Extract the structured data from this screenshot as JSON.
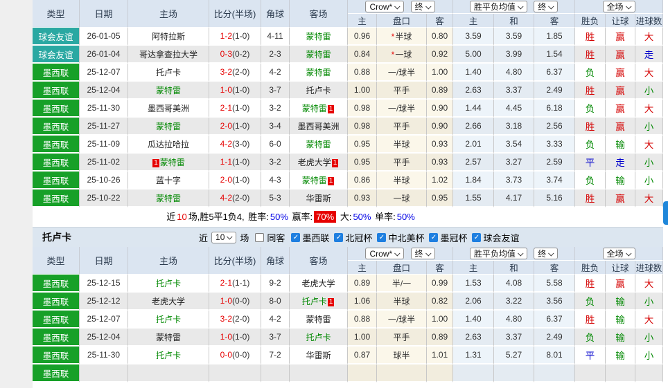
{
  "colors": {
    "league_friendly_bg": "#2aa8a2",
    "league_mex_bg": "#17a028",
    "header_bg": "#dbe5f1",
    "section_bar_bg": "#dce6f0",
    "win_red": "#d40000",
    "lose_green": "#008800",
    "draw_blue": "#0000cc",
    "badge_red": "#e60000",
    "rate_blue": "#0000e6",
    "scroll_thumb_blue": "#1f87da"
  },
  "icons": {
    "check": "✓",
    "select_arrow": "chevron-down"
  },
  "cols": {
    "type": "类型",
    "date": "日期",
    "home": "主场",
    "score": "比分(半场)",
    "corner": "角球",
    "away": "客场",
    "odds_home": "主",
    "handicap": "盘口",
    "odds_away": "客",
    "mean_home": "主",
    "mean_draw": "和",
    "mean_away": "客",
    "result_wdl": "胜负",
    "result_handicap": "让球",
    "result_goals": "进球数"
  },
  "selects": {
    "company": "Crow*",
    "state1": "终",
    "mean": "胜平负均值",
    "state2": "终",
    "scope": "全场"
  },
  "type_colors": {
    "球会友谊": "teal",
    "墨西联": "green"
  },
  "table1": {
    "rows": [
      {
        "type": "球会友谊",
        "date": "26-01-05",
        "home": "阿特拉斯",
        "home_green": false,
        "home_badge": "",
        "home_badge_side": "right",
        "score": "1-2",
        "half": "(1-0)",
        "corner": "4-11",
        "away": "蒙特雷",
        "away_green": true,
        "away_badge": "",
        "o1": "0.96",
        "star": true,
        "hand": "半球",
        "o2": "0.80",
        "m1": "3.59",
        "m2": "3.59",
        "m3": "1.85",
        "r1": "胜",
        "r1c": "red",
        "r2": "赢",
        "r2c": "red",
        "r3": "大",
        "r3c": "red"
      },
      {
        "type": "球会友谊",
        "date": "26-01-04",
        "home": "哥达拿查拉大学",
        "home_green": false,
        "home_badge": "",
        "home_badge_side": "right",
        "score": "0-3",
        "half": "(0-2)",
        "corner": "2-3",
        "away": "蒙特雷",
        "away_green": true,
        "away_badge": "",
        "o1": "0.84",
        "star": true,
        "hand": "一球",
        "o2": "0.92",
        "m1": "5.00",
        "m2": "3.99",
        "m3": "1.54",
        "r1": "胜",
        "r1c": "red",
        "r2": "赢",
        "r2c": "red",
        "r3": "走",
        "r3c": "blue"
      },
      {
        "type": "墨西联",
        "date": "25-12-07",
        "home": "托卢卡",
        "home_green": false,
        "home_badge": "",
        "home_badge_side": "right",
        "score": "3-2",
        "half": "(2-0)",
        "corner": "4-2",
        "away": "蒙特雷",
        "away_green": true,
        "away_badge": "",
        "o1": "0.88",
        "star": false,
        "hand": "一/球半",
        "o2": "1.00",
        "m1": "1.40",
        "m2": "4.80",
        "m3": "6.37",
        "r1": "负",
        "r1c": "green",
        "r2": "赢",
        "r2c": "red",
        "r3": "大",
        "r3c": "red"
      },
      {
        "type": "墨西联",
        "date": "25-12-04",
        "home": "蒙特雷",
        "home_green": true,
        "home_badge": "",
        "home_badge_side": "right",
        "score": "1-0",
        "half": "(1-0)",
        "corner": "3-7",
        "away": "托卢卡",
        "away_green": false,
        "away_badge": "",
        "o1": "1.00",
        "star": false,
        "hand": "平手",
        "o2": "0.89",
        "m1": "2.63",
        "m2": "3.37",
        "m3": "2.49",
        "r1": "胜",
        "r1c": "red",
        "r2": "赢",
        "r2c": "red",
        "r3": "小",
        "r3c": "green"
      },
      {
        "type": "墨西联",
        "date": "25-11-30",
        "home": "墨西哥美洲",
        "home_green": false,
        "home_badge": "",
        "home_badge_side": "right",
        "score": "2-1",
        "half": "(1-0)",
        "corner": "3-2",
        "away": "蒙特雷",
        "away_green": true,
        "away_badge": "1",
        "o1": "0.98",
        "star": false,
        "hand": "一/球半",
        "o2": "0.90",
        "m1": "1.44",
        "m2": "4.45",
        "m3": "6.18",
        "r1": "负",
        "r1c": "green",
        "r2": "赢",
        "r2c": "red",
        "r3": "大",
        "r3c": "red"
      },
      {
        "type": "墨西联",
        "date": "25-11-27",
        "home": "蒙特雷",
        "home_green": true,
        "home_badge": "",
        "home_badge_side": "right",
        "score": "2-0",
        "half": "(1-0)",
        "corner": "3-4",
        "away": "墨西哥美洲",
        "away_green": false,
        "away_badge": "",
        "o1": "0.98",
        "star": false,
        "hand": "平手",
        "o2": "0.90",
        "m1": "2.66",
        "m2": "3.18",
        "m3": "2.56",
        "r1": "胜",
        "r1c": "red",
        "r2": "赢",
        "r2c": "red",
        "r3": "小",
        "r3c": "green"
      },
      {
        "type": "墨西联",
        "date": "25-11-09",
        "home": "瓜达拉哈拉",
        "home_green": false,
        "home_badge": "",
        "home_badge_side": "right",
        "score": "4-2",
        "half": "(3-0)",
        "corner": "6-0",
        "away": "蒙特雷",
        "away_green": true,
        "away_badge": "",
        "o1": "0.95",
        "star": false,
        "hand": "半球",
        "o2": "0.93",
        "m1": "2.01",
        "m2": "3.54",
        "m3": "3.33",
        "r1": "负",
        "r1c": "green",
        "r2": "输",
        "r2c": "green",
        "r3": "大",
        "r3c": "red"
      },
      {
        "type": "墨西联",
        "date": "25-11-02",
        "home": "蒙特雷",
        "home_green": true,
        "home_badge": "1",
        "home_badge_side": "left",
        "score": "1-1",
        "half": "(1-0)",
        "corner": "3-2",
        "away": "老虎大学",
        "away_green": false,
        "away_badge": "1",
        "o1": "0.95",
        "star": false,
        "hand": "平手",
        "o2": "0.93",
        "m1": "2.57",
        "m2": "3.27",
        "m3": "2.59",
        "r1": "平",
        "r1c": "blue",
        "r2": "走",
        "r2c": "blue",
        "r3": "小",
        "r3c": "green"
      },
      {
        "type": "墨西联",
        "date": "25-10-26",
        "home": "蓝十字",
        "home_green": false,
        "home_badge": "",
        "home_badge_side": "right",
        "score": "2-0",
        "half": "(1-0)",
        "corner": "4-3",
        "away": "蒙特雷",
        "away_green": true,
        "away_badge": "1",
        "o1": "0.86",
        "star": false,
        "hand": "半球",
        "o2": "1.02",
        "m1": "1.84",
        "m2": "3.73",
        "m3": "3.74",
        "r1": "负",
        "r1c": "green",
        "r2": "输",
        "r2c": "green",
        "r3": "小",
        "r3c": "green"
      },
      {
        "type": "墨西联",
        "date": "25-10-22",
        "home": "蒙特雷",
        "home_green": true,
        "home_badge": "",
        "home_badge_side": "right",
        "score": "4-2",
        "half": "(2-0)",
        "corner": "5-3",
        "away": "华雷斯",
        "away_green": false,
        "away_badge": "",
        "o1": "0.93",
        "star": false,
        "hand": "一球",
        "o2": "0.95",
        "m1": "1.55",
        "m2": "4.17",
        "m3": "5.16",
        "r1": "胜",
        "r1c": "red",
        "r2": "赢",
        "r2c": "red",
        "r3": "大",
        "r3c": "red"
      }
    ]
  },
  "summary": {
    "text_near": "近",
    "text_count": "10",
    "text_record": "场,胜5平1负4,",
    "text_winrate_label": "胜率:",
    "text_winrate": "50%",
    "text_handrate_label": "赢率:",
    "text_handrate": "70%",
    "text_bigrate_label": "大:",
    "text_bigrate": "50%",
    "text_singlerate_label": "单率:",
    "text_singlerate": "50%"
  },
  "section2": {
    "title": "托卢卡",
    "near_label": "近",
    "games_count": "10",
    "games_label": "场",
    "same_away_label": "同客",
    "leagues": [
      "墨西联",
      "北冠杯",
      "中北美杯",
      "墨冠杯",
      "球会友谊"
    ]
  },
  "table2": {
    "rows": [
      {
        "type": "墨西联",
        "date": "25-12-15",
        "home": "托卢卡",
        "home_green": true,
        "home_badge": "",
        "home_badge_side": "right",
        "score": "2-1",
        "half": "(1-1)",
        "corner": "9-2",
        "away": "老虎大学",
        "away_green": false,
        "away_badge": "",
        "o1": "0.89",
        "star": false,
        "hand": "半/一",
        "o2": "0.99",
        "m1": "1.53",
        "m2": "4.08",
        "m3": "5.58",
        "r1": "胜",
        "r1c": "red",
        "r2": "赢",
        "r2c": "red",
        "r3": "大",
        "r3c": "red"
      },
      {
        "type": "墨西联",
        "date": "25-12-12",
        "home": "老虎大学",
        "home_green": false,
        "home_badge": "",
        "home_badge_side": "right",
        "score": "1-0",
        "half": "(0-0)",
        "corner": "8-0",
        "away": "托卢卡",
        "away_green": true,
        "away_badge": "1",
        "o1": "1.06",
        "star": false,
        "hand": "半球",
        "o2": "0.82",
        "m1": "2.06",
        "m2": "3.22",
        "m3": "3.56",
        "r1": "负",
        "r1c": "green",
        "r2": "输",
        "r2c": "green",
        "r3": "小",
        "r3c": "green"
      },
      {
        "type": "墨西联",
        "date": "25-12-07",
        "home": "托卢卡",
        "home_green": true,
        "home_badge": "",
        "home_badge_side": "right",
        "score": "3-2",
        "half": "(2-0)",
        "corner": "4-2",
        "away": "蒙特雷",
        "away_green": false,
        "away_badge": "",
        "o1": "0.88",
        "star": false,
        "hand": "一/球半",
        "o2": "1.00",
        "m1": "1.40",
        "m2": "4.80",
        "m3": "6.37",
        "r1": "胜",
        "r1c": "red",
        "r2": "输",
        "r2c": "green",
        "r3": "大",
        "r3c": "red"
      },
      {
        "type": "墨西联",
        "date": "25-12-04",
        "home": "蒙特雷",
        "home_green": false,
        "home_badge": "",
        "home_badge_side": "right",
        "score": "1-0",
        "half": "(1-0)",
        "corner": "3-7",
        "away": "托卢卡",
        "away_green": true,
        "away_badge": "",
        "o1": "1.00",
        "star": false,
        "hand": "平手",
        "o2": "0.89",
        "m1": "2.63",
        "m2": "3.37",
        "m3": "2.49",
        "r1": "负",
        "r1c": "green",
        "r2": "输",
        "r2c": "green",
        "r3": "小",
        "r3c": "green"
      },
      {
        "type": "墨西联",
        "date": "25-11-30",
        "home": "托卢卡",
        "home_green": true,
        "home_badge": "",
        "home_badge_side": "right",
        "score": "0-0",
        "half": "(0-0)",
        "corner": "7-2",
        "away": "华雷斯",
        "away_green": false,
        "away_badge": "",
        "o1": "0.87",
        "star": false,
        "hand": "球半",
        "o2": "1.01",
        "m1": "1.31",
        "m2": "5.27",
        "m3": "8.01",
        "r1": "平",
        "r1c": "blue",
        "r2": "输",
        "r2c": "green",
        "r3": "小",
        "r3c": "green"
      },
      {
        "type": "墨西联",
        "date": "",
        "home": "",
        "home_green": false,
        "home_badge": "",
        "home_badge_side": "right",
        "score": "",
        "half": "",
        "corner": "",
        "away": "",
        "away_green": false,
        "away_badge": "",
        "o1": "",
        "star": false,
        "hand": "",
        "o2": "",
        "m1": "",
        "m2": "",
        "m3": "",
        "r1": "",
        "r1c": "red",
        "r2": "",
        "r2c": "red",
        "r3": "",
        "r3c": "red"
      }
    ]
  }
}
